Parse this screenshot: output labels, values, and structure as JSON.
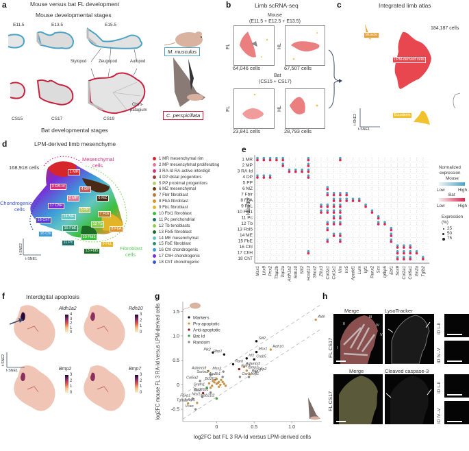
{
  "panel_a": {
    "label": "a",
    "title": "Mouse versus bat FL development",
    "mouse_stages_title": "Mouse developmental stages",
    "bat_stages_title": "Bat developmental stages",
    "mouse_stages": [
      "E11.5",
      "E13.5",
      "E15.5"
    ],
    "bat_stages": [
      "CS15",
      "CS17",
      "CS19"
    ],
    "segments": [
      "Stylopod",
      "Zeugopod",
      "Autopod"
    ],
    "chiropatagium": [
      "Chiro-",
      "patagium"
    ],
    "mouse_species": "M. musculus",
    "bat_species": "C. perspicillata",
    "colors": {
      "mouse": "#4aa3c4",
      "bat": "#c8203f"
    }
  },
  "panel_b": {
    "label": "b",
    "title": "Limb scRNA-seq",
    "mouse_header": "Mouse",
    "mouse_stages": "(E11.5 + E12.5 + E13.5)",
    "bat_header": "Bat",
    "bat_stages": "(CS15 + CS17)",
    "fl_label": "FL",
    "hl_label": "HL",
    "counts": {
      "mouse_fl": "64,046 cells",
      "mouse_hl": "67,507 cells",
      "bat_fl": "23,841 cells",
      "bat_hl": "28,793 cells"
    }
  },
  "panel_c": {
    "label": "c",
    "title": "Integrated limb atlas",
    "total": "184,187 cells",
    "clusters": [
      "Muscle",
      "LPM-derived cells",
      "Ectoderm"
    ],
    "axis_x": "t-SNE1",
    "axis_y": "t-SNE2",
    "colors": {
      "muscle": "#e8a13a",
      "lpm": "#e8474f",
      "ectoderm": "#f2c12e"
    }
  },
  "panel_d": {
    "label": "d",
    "title": "LPM-derived limb mesenchyme",
    "total": "168,918 cells",
    "groups": {
      "mesenchymal": [
        "Mesenchymal",
        "cells"
      ],
      "chondrogenic": [
        "Chondrogenic",
        "cells"
      ],
      "fibroblast": [
        "Fibroblast",
        "cells"
      ]
    },
    "axis_x": "t-SNE1",
    "axis_y": "t-SNE2",
    "cluster_tags": [
      "1 MR",
      "3 RA-Id",
      "4 DP",
      "2 MP",
      "6 MZ",
      "17 ChH",
      "5 PP",
      "7 Fblr",
      "14 ME",
      "18 ChT",
      "12 Tb",
      "8 FbA",
      "15 FbE",
      "16 ChI",
      "10 FbI1",
      "11 Pc",
      "9 FbL",
      "13 FbI5"
    ],
    "legend": [
      {
        "label": "1 MR mesenchymal rim",
        "color": "#d7262b"
      },
      {
        "label": "2 MP mesencyhmal proliferating",
        "color": "#e07b95"
      },
      {
        "label": "3 RA-Id RA-active interdigit",
        "color": "#d9307a"
      },
      {
        "label": "4 DP distal progenitors",
        "color": "#a23a3a"
      },
      {
        "label": "5 PP proximal progenitors",
        "color": "#b5cc6a"
      },
      {
        "label": "6 MZ mesenchymal",
        "color": "#6b3a1c"
      },
      {
        "label": "7 Fblr fibroblast",
        "color": "#b57a33"
      },
      {
        "label": "8 FbA fibroblast",
        "color": "#e0922a"
      },
      {
        "label": "9 FbL fibroblast",
        "color": "#e2b528"
      },
      {
        "label": "10 FbI1 fibroblast",
        "color": "#3cbf3c"
      },
      {
        "label": "11 Pc perichondrial",
        "color": "#1f6f6a"
      },
      {
        "label": "12 Tb tenoblasts",
        "color": "#8fcf4f"
      },
      {
        "label": "13 FbI5 fibroblast",
        "color": "#1d6a24"
      },
      {
        "label": "14 ME mesenchymal",
        "color": "#62c7c2"
      },
      {
        "label": "15 FbE fibroblast",
        "color": "#2e8f6a"
      },
      {
        "label": "16 ChI chondrogenic",
        "color": "#3b9ad9"
      },
      {
        "label": "17 ChH chondrogenic",
        "color": "#7a2bd6"
      },
      {
        "label": "18 ChT chondrogenic",
        "color": "#3a55d6"
      }
    ]
  },
  "panel_e": {
    "label": "e",
    "ylabel": "Identity",
    "identities": [
      "1 MR",
      "2 MP",
      "3 RA-Id",
      "4 DP",
      "5 PP",
      "6 MZ",
      "7 Fblr",
      "8 FbA",
      "9 FbL",
      "10 FbI1",
      "11 Pc",
      "12 Tb",
      "13 FbI5",
      "14 ME",
      "15 FbE",
      "16 ChI",
      "17 ChH",
      "18 ChT"
    ],
    "genes": [
      "Msx1",
      "Lhx9",
      "Prrx2",
      "Tfap2b",
      "Top2a",
      "Aldh1a2",
      "Rdh10",
      "Slit2",
      "Hoxd13",
      "Shox2",
      "Zfhx3",
      "Col3a1",
      "Col1a1",
      "Vim",
      "Irx5",
      "Apcdd1",
      "Lum",
      "Igf1",
      "Runx2",
      "Scx",
      "Igfbp5",
      "Ebf1",
      "Sox9",
      "Col2a1",
      "Col9a1",
      "Itm2a",
      "Tgfb2"
    ],
    "legend": {
      "title": [
        "Normalized",
        "expression"
      ],
      "mouse": "Mouse",
      "bat": "Bat",
      "low": "Low",
      "high": "High",
      "size_title": [
        "Expression",
        "(%)"
      ],
      "sizes": [
        "25",
        "50",
        "75"
      ]
    },
    "colors": {
      "mouse": "#4aa3c4",
      "bat": "#e0244f"
    }
  },
  "panel_f": {
    "label": "f",
    "title": "Interdigital apoptosis",
    "axis_x": "t-SNE1",
    "axis_y": "t-SNE2",
    "maps": [
      {
        "gene": "Aldh1a2",
        "ticks": [
          "4",
          "3",
          "2",
          "1",
          "0"
        ]
      },
      {
        "gene": "Rdh10",
        "ticks": [
          "3",
          "2",
          "1",
          "0"
        ]
      },
      {
        "gene": "Bmp2",
        "ticks": [
          "3",
          "2",
          "1",
          "0"
        ]
      },
      {
        "gene": "Bmp7",
        "ticks": [
          "3",
          "2",
          "1",
          "0"
        ]
      }
    ]
  },
  "panel_g": {
    "label": "g",
    "chart_data": {
      "type": "scatter",
      "xlabel": "log2FC bat FL 3 RA-Id versus LPM-derived cells",
      "ylabel": "log2FC mouse FL 3 RA-Id versus LPM-derived cells",
      "xlim": [
        -0.45,
        1.4
      ],
      "ylim": [
        -0.75,
        1.7
      ],
      "xticks": [
        "0",
        "0.5",
        "1.0"
      ],
      "xtick_values": [
        0,
        0.5,
        1.0
      ],
      "yticks": [
        "-0.5",
        "0",
        "0.5",
        "1.0",
        "1.5"
      ],
      "ytick_values": [
        -0.5,
        0,
        0.5,
        1.0,
        1.5
      ],
      "legend": [
        {
          "name": "Markers",
          "color": "#111111"
        },
        {
          "name": "Pro-apoptotic",
          "color": "#c9954a"
        },
        {
          "name": "Anti-apoptotic",
          "color": "#8b1a1a"
        },
        {
          "name": "Bat Id",
          "color": "#3f9a3f"
        },
        {
          "name": "Random",
          "color": "#888888"
        }
      ],
      "points": [
        {
          "label": "Aldh1a2",
          "x": 1.32,
          "y": 1.33,
          "group": "Pro-apoptotic"
        },
        {
          "label": "Slit2",
          "x": 0.53,
          "y": 0.89,
          "group": "Markers"
        },
        {
          "label": "Msx1",
          "x": 0.53,
          "y": 0.67,
          "group": "Markers"
        },
        {
          "label": "Rdh10",
          "x": 0.72,
          "y": 0.72,
          "group": "Pro-apoptotic"
        },
        {
          "label": "Rbp1",
          "x": 0.1,
          "y": 0.62,
          "group": "Markers"
        },
        {
          "label": "Plk2",
          "x": -0.05,
          "y": 0.66,
          "group": "Markers"
        },
        {
          "label": "Id3",
          "x": 0.4,
          "y": 0.54,
          "group": "Markers"
        },
        {
          "label": "Creb5",
          "x": 0.5,
          "y": 0.52,
          "group": "Markers"
        },
        {
          "label": "Rarb",
          "x": 0.22,
          "y": 0.42,
          "group": "Markers"
        },
        {
          "label": "Adamts5",
          "x": 0.36,
          "y": 0.37,
          "group": "Pro-apoptotic"
        },
        {
          "label": "Bmp2",
          "x": 0.4,
          "y": 0.29,
          "group": "Pro-apoptotic"
        },
        {
          "label": "Fgfr2",
          "x": 0.3,
          "y": 0.32,
          "group": "Anti-apoptotic"
        },
        {
          "label": "Sfrp2",
          "x": 0.52,
          "y": 0.26,
          "group": "Random"
        },
        {
          "label": "Bmp7",
          "x": 0.44,
          "y": 0.22,
          "group": "Pro-apoptotic"
        },
        {
          "label": "Nrp1",
          "x": 0.43,
          "y": 0.16,
          "group": "Random"
        },
        {
          "label": "Osr1",
          "x": 0.31,
          "y": 0.16,
          "group": "Random"
        },
        {
          "label": "Adamts9",
          "x": -0.11,
          "y": 0.28,
          "group": "Pro-apoptotic"
        },
        {
          "label": "Msx2",
          "x": 0.09,
          "y": 0.27,
          "group": "Random"
        },
        {
          "label": "Sorbs2",
          "x": -0.08,
          "y": 0.2,
          "group": "Random"
        },
        {
          "label": "Atp2b1",
          "x": 0.08,
          "y": 0.16,
          "group": "Random"
        },
        {
          "label": "Col5a2",
          "x": -0.22,
          "y": 0.08,
          "group": "Random"
        },
        {
          "label": "Bcl2l11",
          "x": 0.03,
          "y": 0.06,
          "group": "Pro-apoptotic"
        },
        {
          "label": "Grem1",
          "x": -0.13,
          "y": -0.06,
          "group": "Bat Id"
        },
        {
          "label": "Cyp26b1",
          "x": -0.08,
          "y": -0.16,
          "group": "Random"
        },
        {
          "label": "Bcl2",
          "x": -0.18,
          "y": -0.17,
          "group": "Anti-apoptotic"
        },
        {
          "label": "Ntsl1",
          "x": -0.19,
          "y": -0.25,
          "group": "Random"
        },
        {
          "label": "Mab21l2",
          "x": 0.0,
          "y": -0.28,
          "group": "Bat Id"
        },
        {
          "label": "Foxp1",
          "x": -0.32,
          "y": -0.28,
          "group": "Random"
        },
        {
          "label": "Tgfb2",
          "x": -0.38,
          "y": -0.38,
          "group": "Pro-apoptotic"
        },
        {
          "label": "Igfbp5",
          "x": -0.26,
          "y": -0.37,
          "group": "Pro-apoptotic"
        },
        {
          "label": "Vcan",
          "x": -0.28,
          "y": -0.5,
          "group": "Random"
        }
      ]
    }
  },
  "panel_h": {
    "label": "h",
    "row_label": "FL CS17",
    "top": {
      "merge": "Merge",
      "stain": "LysoTracker",
      "digits": [
        "I",
        "II",
        "III",
        "IV",
        "V"
      ]
    },
    "bottom": {
      "merge": "Merge",
      "stain": "Cleaved caspase-3"
    },
    "insets": [
      "ID I–II",
      "ID IV–V"
    ]
  }
}
